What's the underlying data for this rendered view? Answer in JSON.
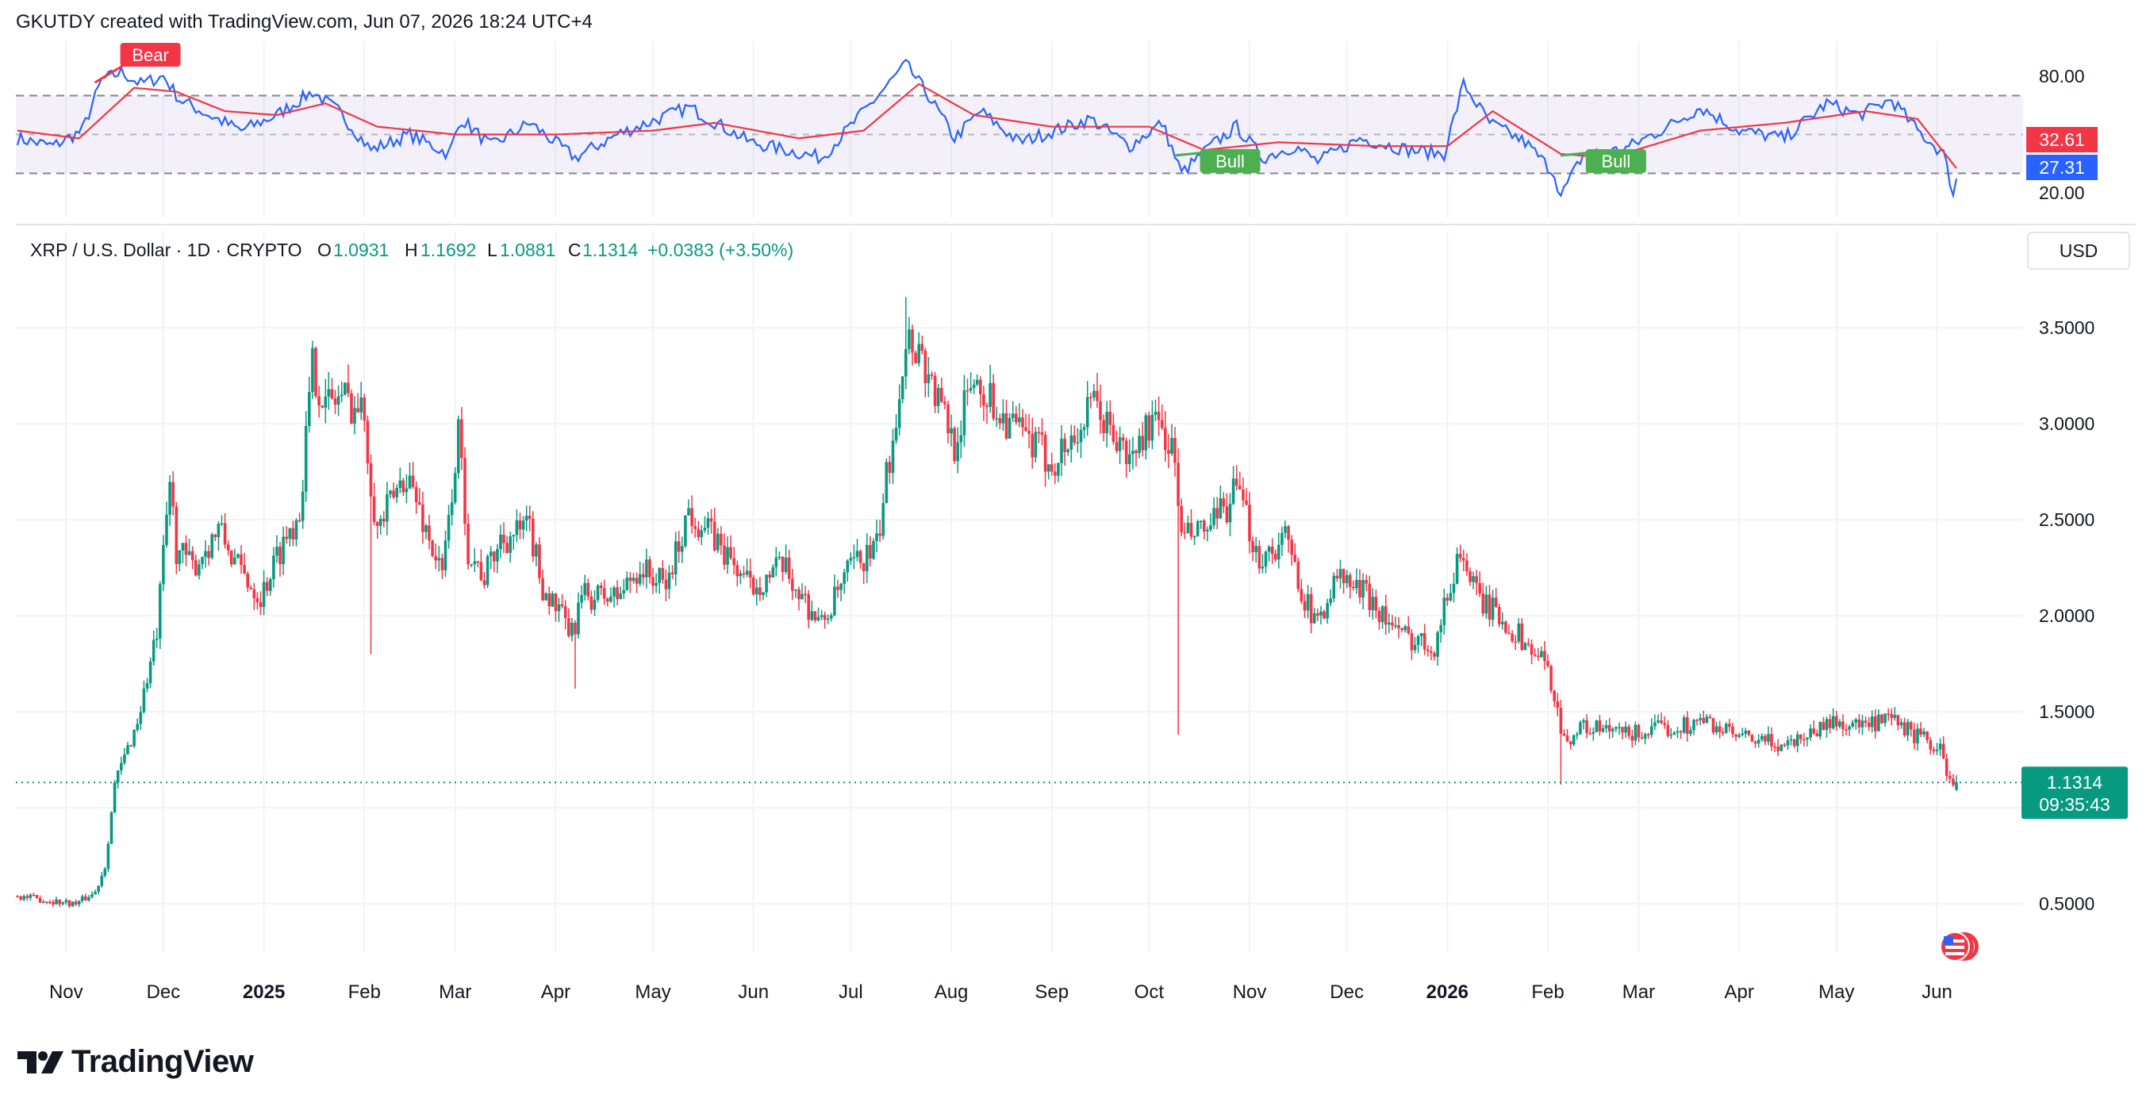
{
  "header": {
    "text": "GKUTDY created with TradingView.com, Jun 07, 2026 18:24 UTC+4"
  },
  "legend": {
    "symbol": "XRP / U.S. Dollar · 1D · CRYPTO",
    "o_label": "O",
    "o_value": "1.0931",
    "h_label": "H",
    "h_value": "1.1692",
    "l_label": "L",
    "l_value": "1.0881",
    "c_label": "C",
    "c_value": "1.1314",
    "change": "+0.0383 (+3.50%)"
  },
  "currency_button": "USD",
  "price_badge": {
    "price": "1.1314",
    "countdown": "09:35:43"
  },
  "rsi_badges": {
    "ma": "32.61",
    "rsi": "27.31"
  },
  "rsi_signals": {
    "bear": "Bear",
    "bull_1": "Bull",
    "bull_2": "Bull"
  },
  "branding": {
    "logo_text": "TradingView"
  },
  "colors": {
    "up": "#089981",
    "down": "#f23645",
    "rsi_line": "#2962ff",
    "rsi_ma": "#f23645",
    "bear": "#f23645",
    "bull": "#4caf50",
    "current_price_line": "#089981"
  },
  "chart_data": [
    {
      "type": "candlestick",
      "title": "XRP / U.S. Dollar · 1D · CRYPTO",
      "x_range": [
        "2024-10-17",
        "2026-06-07"
      ],
      "x_ticks": [
        {
          "date": "2024-11-01",
          "label": "Nov"
        },
        {
          "date": "2024-12-01",
          "label": "Dec"
        },
        {
          "date": "2025-01-01",
          "label": "2025",
          "year": true
        },
        {
          "date": "2025-02-01",
          "label": "Feb"
        },
        {
          "date": "2025-03-01",
          "label": "Mar"
        },
        {
          "date": "2025-04-01",
          "label": "Apr"
        },
        {
          "date": "2025-05-01",
          "label": "May"
        },
        {
          "date": "2025-06-01",
          "label": "Jun"
        },
        {
          "date": "2025-07-01",
          "label": "Jul"
        },
        {
          "date": "2025-08-01",
          "label": "Aug"
        },
        {
          "date": "2025-09-01",
          "label": "Sep"
        },
        {
          "date": "2025-10-01",
          "label": "Oct"
        },
        {
          "date": "2025-11-01",
          "label": "Nov"
        },
        {
          "date": "2025-12-01",
          "label": "Dec"
        },
        {
          "date": "2026-01-01",
          "label": "2026",
          "year": true
        },
        {
          "date": "2026-02-01",
          "label": "Feb"
        },
        {
          "date": "2026-03-01",
          "label": "Mar"
        },
        {
          "date": "2026-04-01",
          "label": "Apr"
        },
        {
          "date": "2026-05-01",
          "label": "May"
        },
        {
          "date": "2026-06-01",
          "label": "Jun"
        }
      ],
      "y_ticks": [
        "3.5000",
        "3.0000",
        "2.5000",
        "2.0000",
        "1.5000",
        "0.5000"
      ],
      "y_tick_values": [
        3.5,
        3.0,
        2.5,
        2.0,
        1.5,
        0.5
      ],
      "current_price": 1.1314,
      "close_anchors": [
        [
          "2024-10-17",
          0.54
        ],
        [
          "2024-10-25",
          0.52
        ],
        [
          "2024-11-04",
          0.5
        ],
        [
          "2024-11-10",
          0.56
        ],
        [
          "2024-11-13",
          0.7
        ],
        [
          "2024-11-16",
          1.12
        ],
        [
          "2024-11-23",
          1.45
        ],
        [
          "2024-11-29",
          1.9
        ],
        [
          "2024-12-03",
          2.7
        ],
        [
          "2024-12-05",
          2.35
        ],
        [
          "2024-12-10",
          2.25
        ],
        [
          "2024-12-18",
          2.45
        ],
        [
          "2024-12-24",
          2.25
        ],
        [
          "2024-12-31",
          2.1
        ],
        [
          "2025-01-06",
          2.35
        ],
        [
          "2025-01-12",
          2.55
        ],
        [
          "2025-01-16",
          3.3
        ],
        [
          "2025-01-20",
          3.1
        ],
        [
          "2025-01-25",
          3.15
        ],
        [
          "2025-02-01",
          3.05
        ],
        [
          "2025-02-03",
          2.7
        ],
        [
          "2025-02-05",
          2.45
        ],
        [
          "2025-02-14",
          2.75
        ],
        [
          "2025-02-25",
          2.2
        ],
        [
          "2025-03-02",
          2.95
        ],
        [
          "2025-03-05",
          2.35
        ],
        [
          "2025-03-10",
          2.2
        ],
        [
          "2025-03-15",
          2.4
        ],
        [
          "2025-03-24",
          2.45
        ],
        [
          "2025-03-28",
          2.15
        ],
        [
          "2025-04-06",
          1.9
        ],
        [
          "2025-04-09",
          2.1
        ],
        [
          "2025-04-20",
          2.1
        ],
        [
          "2025-04-27",
          2.25
        ],
        [
          "2025-05-05",
          2.15
        ],
        [
          "2025-05-12",
          2.55
        ],
        [
          "2025-05-20",
          2.4
        ],
        [
          "2025-05-31",
          2.15
        ],
        [
          "2025-06-10",
          2.25
        ],
        [
          "2025-06-22",
          1.95
        ],
        [
          "2025-07-01",
          2.25
        ],
        [
          "2025-07-09",
          2.35
        ],
        [
          "2025-07-14",
          2.95
        ],
        [
          "2025-07-18",
          3.45
        ],
        [
          "2025-07-22",
          3.4
        ],
        [
          "2025-07-26",
          3.2
        ],
        [
          "2025-08-02",
          2.9
        ],
        [
          "2025-08-08",
          3.25
        ],
        [
          "2025-08-14",
          3.1
        ],
        [
          "2025-08-22",
          2.95
        ],
        [
          "2025-09-01",
          2.8
        ],
        [
          "2025-09-09",
          2.95
        ],
        [
          "2025-09-14",
          3.1
        ],
        [
          "2025-09-25",
          2.8
        ],
        [
          "2025-10-01",
          3.0
        ],
        [
          "2025-10-06",
          2.95
        ],
        [
          "2025-10-09",
          2.8
        ],
        [
          "2025-10-11",
          2.4
        ],
        [
          "2025-10-20",
          2.45
        ],
        [
          "2025-10-28",
          2.65
        ],
        [
          "2025-11-04",
          2.3
        ],
        [
          "2025-11-12",
          2.4
        ],
        [
          "2025-11-21",
          1.95
        ],
        [
          "2025-11-28",
          2.2
        ],
        [
          "2025-12-08",
          2.1
        ],
        [
          "2025-12-17",
          1.9
        ],
        [
          "2025-12-28",
          1.85
        ],
        [
          "2026-01-05",
          2.35
        ],
        [
          "2026-01-10",
          2.1
        ],
        [
          "2026-01-20",
          1.95
        ],
        [
          "2026-01-31",
          1.75
        ],
        [
          "2026-02-03",
          1.6
        ],
        [
          "2026-02-06",
          1.35
        ],
        [
          "2026-02-12",
          1.42
        ],
        [
          "2026-02-25",
          1.38
        ],
        [
          "2026-03-05",
          1.4
        ],
        [
          "2026-03-22",
          1.45
        ],
        [
          "2026-04-01",
          1.36
        ],
        [
          "2026-04-15",
          1.33
        ],
        [
          "2026-04-30",
          1.45
        ],
        [
          "2026-05-10",
          1.42
        ],
        [
          "2026-05-18",
          1.45
        ],
        [
          "2026-05-25",
          1.38
        ],
        [
          "2026-06-02",
          1.3
        ],
        [
          "2026-06-06",
          1.09
        ],
        [
          "2026-06-07",
          1.1314
        ]
      ],
      "wick_spikes": [
        {
          "date": "2025-02-03",
          "low": 1.8
        },
        {
          "date": "2025-04-07",
          "low": 1.62
        },
        {
          "date": "2025-10-10",
          "low": 1.38
        },
        {
          "date": "2026-02-05",
          "low": 1.12
        },
        {
          "date": "2025-07-18",
          "high": 3.66
        }
      ]
    },
    {
      "type": "line",
      "title": "RSI",
      "y_ticks": [
        "80.00",
        "20.00"
      ],
      "y_tick_values": [
        80,
        20
      ],
      "bands": {
        "upper": 70,
        "middle": 50,
        "lower": 30
      },
      "series": [
        {
          "role": "rsi",
          "points": [
            [
              "2024-10-17",
              48
            ],
            [
              "2024-10-28",
              44
            ],
            [
              "2024-11-06",
              52
            ],
            [
              "2024-11-12",
              78
            ],
            [
              "2024-11-18",
              82
            ],
            [
              "2024-11-24",
              76
            ],
            [
              "2024-12-01",
              80
            ],
            [
              "2024-12-06",
              68
            ],
            [
              "2024-12-15",
              60
            ],
            [
              "2024-12-25",
              52
            ],
            [
              "2025-01-05",
              60
            ],
            [
              "2025-01-16",
              72
            ],
            [
              "2025-01-24",
              62
            ],
            [
              "2025-02-03",
              42
            ],
            [
              "2025-02-15",
              50
            ],
            [
              "2025-02-27",
              40
            ],
            [
              "2025-03-03",
              58
            ],
            [
              "2025-03-12",
              44
            ],
            [
              "2025-03-24",
              56
            ],
            [
              "2025-04-07",
              38
            ],
            [
              "2025-04-20",
              50
            ],
            [
              "2025-05-12",
              64
            ],
            [
              "2025-05-31",
              46
            ],
            [
              "2025-06-22",
              38
            ],
            [
              "2025-07-03",
              58
            ],
            [
              "2025-07-18",
              86
            ],
            [
              "2025-07-25",
              70
            ],
            [
              "2025-08-02",
              48
            ],
            [
              "2025-08-10",
              62
            ],
            [
              "2025-08-22",
              46
            ],
            [
              "2025-09-13",
              58
            ],
            [
              "2025-09-25",
              44
            ],
            [
              "2025-10-05",
              56
            ],
            [
              "2025-10-11",
              30
            ],
            [
              "2025-10-20",
              44
            ],
            [
              "2025-10-28",
              54
            ],
            [
              "2025-11-05",
              38
            ],
            [
              "2025-11-15",
              44
            ],
            [
              "2025-11-22",
              36
            ],
            [
              "2025-12-05",
              48
            ],
            [
              "2025-12-20",
              42
            ],
            [
              "2025-12-31",
              40
            ],
            [
              "2026-01-06",
              76
            ],
            [
              "2026-01-14",
              56
            ],
            [
              "2026-01-25",
              46
            ],
            [
              "2026-02-03",
              30
            ],
            [
              "2026-02-05",
              18
            ],
            [
              "2026-02-12",
              40
            ],
            [
              "2026-02-24",
              42
            ],
            [
              "2026-03-10",
              54
            ],
            [
              "2026-03-20",
              64
            ],
            [
              "2026-04-01",
              52
            ],
            [
              "2026-04-15",
              48
            ],
            [
              "2026-04-28",
              66
            ],
            [
              "2026-05-08",
              60
            ],
            [
              "2026-05-18",
              68
            ],
            [
              "2026-05-26",
              52
            ],
            [
              "2026-06-03",
              40
            ],
            [
              "2026-06-06",
              20
            ],
            [
              "2026-06-07",
              27.31
            ]
          ]
        },
        {
          "role": "rsi-ma",
          "points": [
            [
              "2024-10-17",
              52
            ],
            [
              "2024-11-05",
              48
            ],
            [
              "2024-11-22",
              74
            ],
            [
              "2024-12-05",
              72
            ],
            [
              "2024-12-20",
              62
            ],
            [
              "2025-01-05",
              60
            ],
            [
              "2025-01-20",
              66
            ],
            [
              "2025-02-05",
              54
            ],
            [
              "2025-03-01",
              50
            ],
            [
              "2025-04-01",
              50
            ],
            [
              "2025-05-01",
              52
            ],
            [
              "2025-05-20",
              56
            ],
            [
              "2025-06-15",
              48
            ],
            [
              "2025-07-05",
              52
            ],
            [
              "2025-07-22",
              76
            ],
            [
              "2025-08-08",
              60
            ],
            [
              "2025-09-01",
              54
            ],
            [
              "2025-10-01",
              54
            ],
            [
              "2025-10-18",
              42
            ],
            [
              "2025-11-10",
              46
            ],
            [
              "2025-12-10",
              44
            ],
            [
              "2026-01-01",
              44
            ],
            [
              "2026-01-15",
              62
            ],
            [
              "2026-02-05",
              40
            ],
            [
              "2026-02-20",
              38
            ],
            [
              "2026-03-20",
              52
            ],
            [
              "2026-04-15",
              56
            ],
            [
              "2026-05-10",
              62
            ],
            [
              "2026-05-26",
              58
            ],
            [
              "2026-06-07",
              32.61
            ]
          ]
        }
      ],
      "signals": [
        {
          "label": "Bear",
          "date": "2024-11-27"
        },
        {
          "label": "Bull",
          "date": "2025-10-26"
        },
        {
          "label": "Bull",
          "date": "2026-02-22"
        }
      ]
    }
  ]
}
